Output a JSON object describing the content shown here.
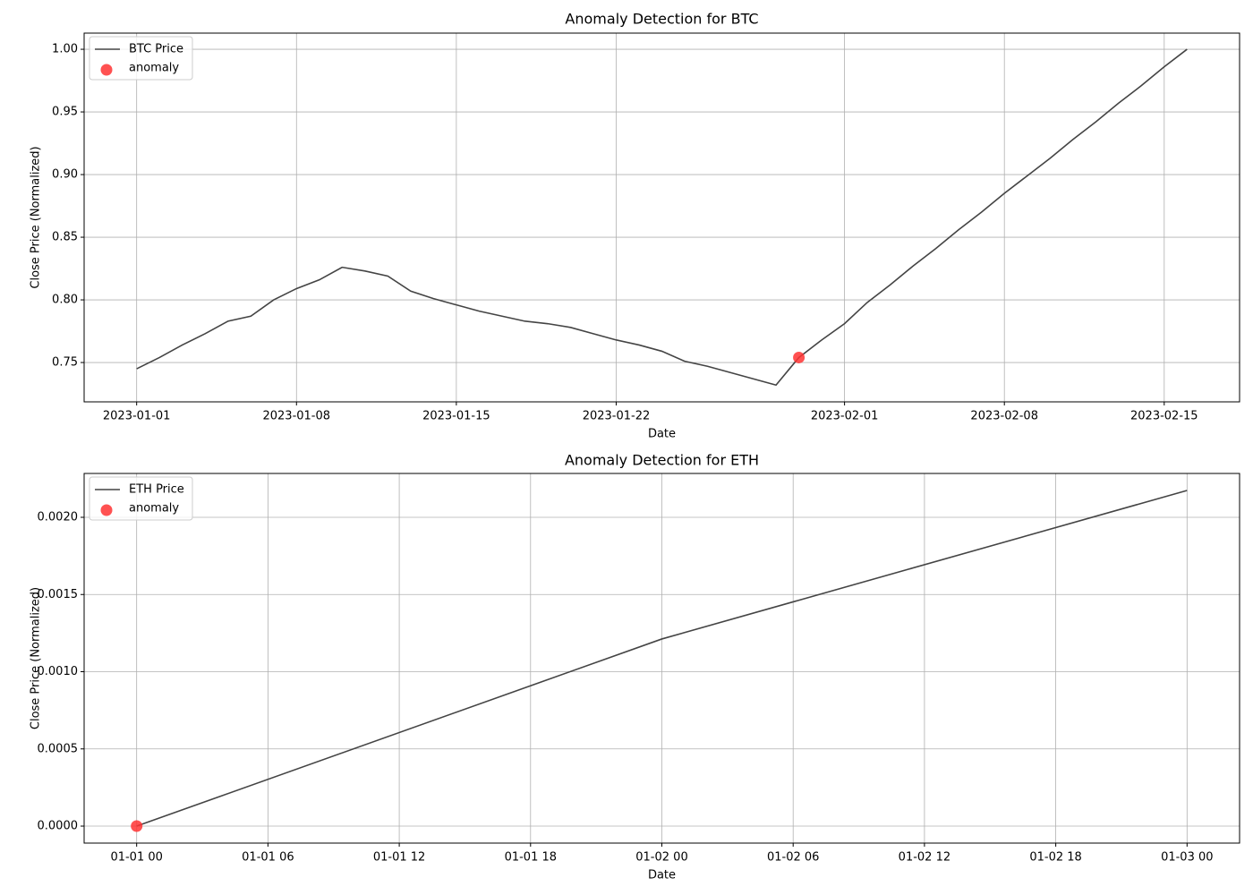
{
  "chart_data": [
    {
      "type": "line",
      "title": "Anomaly Detection for BTC",
      "x_label": "Date",
      "y_label": "Close Price (Normalized)",
      "x": [
        "2023-01-01",
        "2023-01-02",
        "2023-01-03",
        "2023-01-04",
        "2023-01-05",
        "2023-01-06",
        "2023-01-07",
        "2023-01-08",
        "2023-01-09",
        "2023-01-10",
        "2023-01-11",
        "2023-01-12",
        "2023-01-13",
        "2023-01-14",
        "2023-01-15",
        "2023-01-16",
        "2023-01-17",
        "2023-01-18",
        "2023-01-19",
        "2023-01-20",
        "2023-01-21",
        "2023-01-22",
        "2023-01-23",
        "2023-01-24",
        "2023-01-25",
        "2023-01-26",
        "2023-01-27",
        "2023-01-28",
        "2023-01-29",
        "2023-01-30",
        "2023-01-31",
        "2023-02-01",
        "2023-02-02",
        "2023-02-03",
        "2023-02-04",
        "2023-02-05",
        "2023-02-06",
        "2023-02-07",
        "2023-02-08",
        "2023-02-09",
        "2023-02-10",
        "2023-02-11",
        "2023-02-12",
        "2023-02-13",
        "2023-02-14",
        "2023-02-15",
        "2023-02-16"
      ],
      "series": [
        {
          "name": "BTC Price",
          "type": "line",
          "color": "#444444",
          "values": [
            0.745,
            0.754,
            0.764,
            0.773,
            0.783,
            0.787,
            0.8,
            0.809,
            0.816,
            0.826,
            0.823,
            0.819,
            0.807,
            0.801,
            0.796,
            0.791,
            0.787,
            0.783,
            0.781,
            0.778,
            0.773,
            0.768,
            0.764,
            0.759,
            0.751,
            0.747,
            0.742,
            0.737,
            0.732,
            0.754,
            0.768,
            0.781,
            0.798,
            0.812,
            0.827,
            0.841,
            0.856,
            0.87,
            0.885,
            0.899,
            0.913,
            0.928,
            0.942,
            0.957,
            0.971,
            0.986,
            1.0
          ]
        },
        {
          "name": "anomaly",
          "type": "scatter",
          "color": "#ff3333",
          "x": [
            "2023-01-30"
          ],
          "values": [
            0.754
          ]
        }
      ],
      "xlim": [
        "2022-12-29T16:48",
        "2023-02-18T07:12"
      ],
      "xticks": [
        "2023-01-01",
        "2023-01-08",
        "2023-01-15",
        "2023-01-22",
        "2023-02-01",
        "2023-02-08",
        "2023-02-15"
      ],
      "ylim": [
        0.7186,
        1.0129
      ],
      "yticks": [
        0.75,
        {
          "value": 0.8,
          "label": "0.80"
        },
        0.85,
        {
          "value": 0.9,
          "label": "0.90"
        },
        0.95,
        {
          "value": 1,
          "label": "1.00"
        }
      ],
      "grid": true,
      "legend": "upper-left"
    },
    {
      "type": "line",
      "title": "Anomaly Detection for ETH",
      "x_label": "Date",
      "y_label": "Close Price (Normalized)",
      "x": [
        "01-01 00",
        "01-02 00",
        "01-03 00"
      ],
      "series": [
        {
          "name": "ETH Price",
          "type": "line",
          "color": "#444444",
          "values": [
            0,
            0.001212,
            0.002174
          ]
        },
        {
          "name": "anomaly",
          "type": "scatter",
          "color": "#ff3333",
          "x": [
            "01-01 00"
          ],
          "values": [
            0
          ]
        }
      ],
      "xlim": [
        "12-31 21:36",
        "01-03 02:24"
      ],
      "xticks": [
        "01-01 00",
        "01-01 06",
        "01-01 12",
        "01-01 18",
        "01-02 00",
        "01-02 06",
        "01-02 12",
        "01-02 18",
        "01-03 00"
      ],
      "ylim": [
        -0.00011,
        0.002284
      ],
      "yticks": [
        {
          "value": 0,
          "label": "0.0000"
        },
        {
          "value": 0.0005,
          "label": "0.0005"
        },
        {
          "value": 0.001,
          "label": "0.0010"
        },
        {
          "value": 0.0015,
          "label": "0.0015"
        },
        {
          "value": 0.002,
          "label": "0.0020"
        }
      ],
      "grid": true,
      "legend": "upper-left"
    }
  ]
}
